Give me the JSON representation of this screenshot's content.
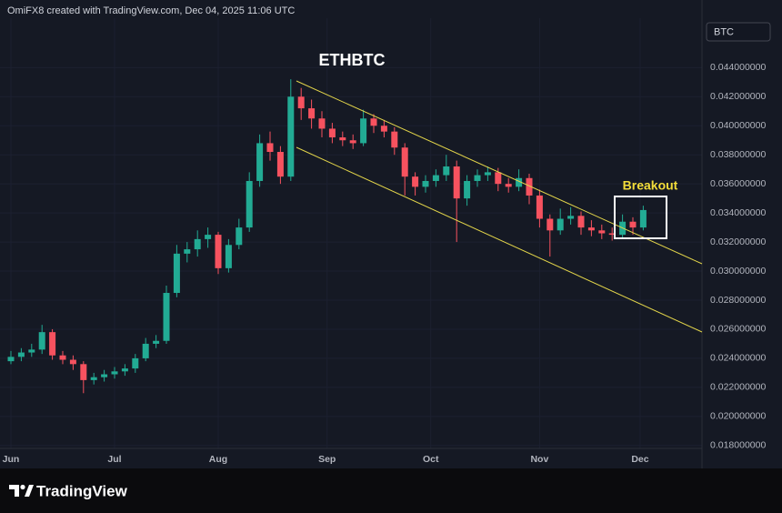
{
  "header": "OmiFX8 created with TradingView.com, Dec 04, 2025 11:06 UTC",
  "chart_data": {
    "type": "candlestick",
    "title": "ETHBTC",
    "annotation": "Breakout",
    "currency": "BTC",
    "up_color": "#22ab94",
    "down_color": "#f7525f",
    "grid": true,
    "categories": [
      null,
      null,
      null,
      null,
      null,
      null,
      null,
      null,
      null,
      null,
      null,
      null,
      null,
      null,
      null,
      null,
      null,
      null,
      null,
      null,
      null,
      null,
      null,
      null,
      null,
      null,
      null,
      null,
      null,
      null,
      null,
      null,
      null,
      null,
      null,
      null,
      null,
      null,
      null,
      null,
      null,
      null,
      null,
      null,
      null,
      null,
      null,
      null,
      null,
      null,
      null,
      null,
      null,
      null,
      null,
      null,
      null,
      null,
      null,
      null,
      null,
      null
    ],
    "open": [
      0.0238,
      0.0241,
      0.0244,
      0.0246,
      0.0258,
      0.0242,
      0.0239,
      0.0236,
      0.0225,
      0.0227,
      0.0229,
      0.0231,
      0.0233,
      0.024,
      0.025,
      0.0252,
      0.0285,
      0.0312,
      0.0315,
      0.0322,
      0.0325,
      0.0302,
      0.0318,
      0.033,
      0.0362,
      0.0388,
      0.0382,
      0.0365,
      0.042,
      0.0412,
      0.0405,
      0.0398,
      0.0392,
      0.039,
      0.0388,
      0.0405,
      0.04,
      0.0396,
      0.0385,
      0.0365,
      0.0358,
      0.0362,
      0.0366,
      0.0372,
      0.035,
      0.0362,
      0.0366,
      0.0368,
      0.036,
      0.0358,
      0.0364,
      0.0352,
      0.0336,
      0.0328,
      0.0336,
      0.0338,
      0.033,
      0.0328,
      0.0326,
      0.0325,
      0.0334,
      0.033
    ],
    "high": [
      0.0245,
      0.0247,
      0.025,
      0.0263,
      0.026,
      0.0245,
      0.0242,
      0.0238,
      0.023,
      0.0232,
      0.0234,
      0.0236,
      0.0243,
      0.0254,
      0.0256,
      0.029,
      0.0318,
      0.032,
      0.0328,
      0.033,
      0.0327,
      0.0322,
      0.0336,
      0.0368,
      0.0394,
      0.0396,
      0.0386,
      0.0432,
      0.0426,
      0.0418,
      0.041,
      0.0402,
      0.0396,
      0.0394,
      0.0411,
      0.0408,
      0.0404,
      0.0399,
      0.0388,
      0.0368,
      0.0366,
      0.037,
      0.038,
      0.0376,
      0.0366,
      0.037,
      0.0372,
      0.0371,
      0.0364,
      0.037,
      0.0367,
      0.0356,
      0.0339,
      0.0343,
      0.0344,
      0.0341,
      0.0335,
      0.0332,
      0.033,
      0.0339,
      0.0337,
      0.0345
    ],
    "low": [
      0.0236,
      0.0238,
      0.0241,
      0.0243,
      0.0239,
      0.0236,
      0.0232,
      0.0216,
      0.0222,
      0.0224,
      0.0226,
      0.0228,
      0.023,
      0.0238,
      0.0247,
      0.025,
      0.0282,
      0.0306,
      0.031,
      0.0316,
      0.0298,
      0.0299,
      0.0315,
      0.0327,
      0.0358,
      0.0376,
      0.036,
      0.0362,
      0.0404,
      0.0398,
      0.0392,
      0.0388,
      0.0386,
      0.0384,
      0.0386,
      0.0395,
      0.0392,
      0.038,
      0.0352,
      0.0352,
      0.0354,
      0.0358,
      0.0362,
      0.032,
      0.0345,
      0.0358,
      0.0362,
      0.0355,
      0.0354,
      0.0355,
      0.0346,
      0.033,
      0.031,
      0.0325,
      0.0332,
      0.0325,
      0.0324,
      0.0322,
      0.0321,
      0.0323,
      0.0325,
      0.0328
    ],
    "close": [
      0.0241,
      0.0244,
      0.0246,
      0.0258,
      0.0242,
      0.0239,
      0.0236,
      0.0225,
      0.0227,
      0.0229,
      0.0231,
      0.0233,
      0.024,
      0.025,
      0.0252,
      0.0285,
      0.0312,
      0.0315,
      0.0322,
      0.0325,
      0.0302,
      0.0318,
      0.033,
      0.0362,
      0.0388,
      0.0382,
      0.0365,
      0.042,
      0.0412,
      0.0405,
      0.0398,
      0.0392,
      0.039,
      0.0388,
      0.0405,
      0.04,
      0.0396,
      0.0385,
      0.0365,
      0.0358,
      0.0362,
      0.0366,
      0.0372,
      0.035,
      0.0362,
      0.0366,
      0.0368,
      0.036,
      0.0358,
      0.0364,
      0.0352,
      0.0336,
      0.0328,
      0.0336,
      0.0338,
      0.033,
      0.0328,
      0.0326,
      0.0325,
      0.0334,
      0.033,
      0.0342
    ],
    "ylim": [
      0.0474,
      0.0178
    ],
    "yticks": [
      {
        "value": 0.044,
        "label": "0.044000000"
      },
      {
        "value": 0.042,
        "label": "0.042000000"
      },
      {
        "value": 0.04,
        "label": "0.040000000"
      },
      {
        "value": 0.038,
        "label": "0.038000000"
      },
      {
        "value": 0.036,
        "label": "0.036000000"
      },
      {
        "value": 0.034,
        "label": "0.034000000"
      },
      {
        "value": 0.032,
        "label": "0.032000000"
      },
      {
        "value": 0.03,
        "label": "0.030000000"
      },
      {
        "value": 0.028,
        "label": "0.028000000"
      },
      {
        "value": 0.026,
        "label": "0.026000000"
      },
      {
        "value": 0.024,
        "label": "0.024000000"
      },
      {
        "value": 0.022,
        "label": "0.022000000"
      },
      {
        "value": 0.02,
        "label": "0.020000000"
      },
      {
        "value": 0.018,
        "label": "0.018000000"
      }
    ],
    "xticks": [
      {
        "value": 0,
        "label": "Jun"
      },
      {
        "value": 10,
        "label": "Jul"
      },
      {
        "value": 20,
        "label": "Aug"
      },
      {
        "value": 30.5,
        "label": "Sep"
      },
      {
        "value": 40.5,
        "label": "Oct"
      },
      {
        "value": 51,
        "label": "Nov"
      },
      {
        "value": 60.7,
        "label": "Dec"
      }
    ]
  },
  "footer": {
    "logo": "TradingView"
  }
}
